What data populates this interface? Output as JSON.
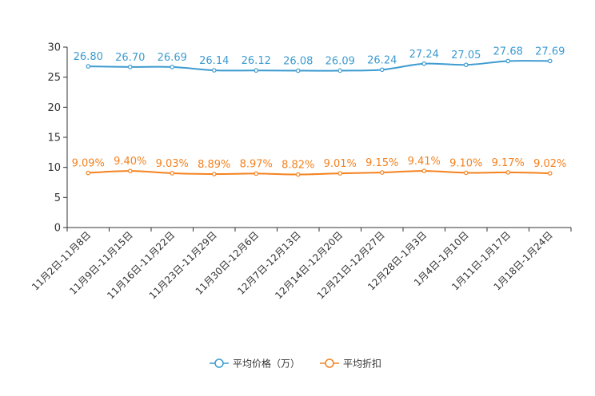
{
  "chart_data": {
    "type": "line",
    "title": "",
    "xlabel": "",
    "ylabel": "",
    "ylim": [
      0,
      30
    ],
    "yticks": [
      0,
      5,
      10,
      15,
      20,
      25,
      30
    ],
    "categories": [
      "11月2日-11月8日",
      "11月9日-11月15日",
      "11月16日-11月22日",
      "11月23日-11月29日",
      "11月30日-12月6日",
      "12月7日-12月13日",
      "12月14日-12月20日",
      "12月21日-12月27日",
      "12月28日-1月3日",
      "1月4日-1月10日",
      "1月11日-1月17日",
      "1月18日-1月24日"
    ],
    "series": [
      {
        "name": "平均价格（万）",
        "color": "#3d9bd0",
        "values": [
          26.8,
          26.7,
          26.69,
          26.14,
          26.12,
          26.08,
          26.09,
          26.24,
          27.24,
          27.05,
          27.68,
          27.69
        ],
        "labels": [
          "26.80",
          "26.70",
          "26.69",
          "26.14",
          "26.12",
          "26.08",
          "26.09",
          "26.24",
          "27.24",
          "27.05",
          "27.68",
          "27.69"
        ]
      },
      {
        "name": "平均折扣",
        "color": "#f4821f",
        "values": [
          9.09,
          9.4,
          9.03,
          8.89,
          8.97,
          8.82,
          9.01,
          9.15,
          9.41,
          9.1,
          9.17,
          9.02
        ],
        "labels": [
          "9.09%",
          "9.40%",
          "9.03%",
          "8.89%",
          "8.97%",
          "8.82%",
          "9.01%",
          "9.15%",
          "9.41%",
          "9.10%",
          "9.17%",
          "9.02%"
        ]
      }
    ],
    "legend_position": "bottom-center",
    "grid": false
  }
}
